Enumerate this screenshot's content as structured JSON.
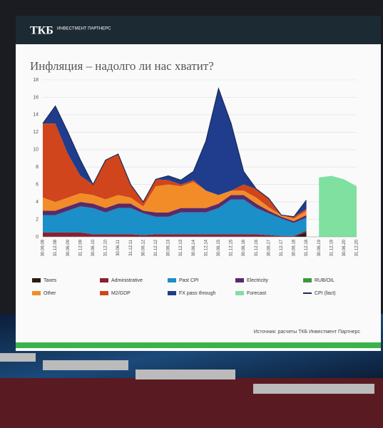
{
  "header": {
    "logo": "ТКБ",
    "logo_sub": "ИНВЕСТМЕНТ ПАРТНЕРС"
  },
  "source": "Источник: расчеты ТКБ Инвестмент Партнерс",
  "chart_data": {
    "type": "area",
    "title": "Инфляция – надолго ли нас хватит?",
    "categories": [
      "30.06.08",
      "31.12.08",
      "30.06.09",
      "31.12.09",
      "30.06.10",
      "31.12.10",
      "30.06.11",
      "31.12.11",
      "30.06.12",
      "31.12.12",
      "30.06.13",
      "31.12.13",
      "30.06.14",
      "31.12.14",
      "30.06.15",
      "31.12.15",
      "30.06.16",
      "31.12.16",
      "30.06.17",
      "31.12.17",
      "30.06.18",
      "31.12.18",
      "30.06.19",
      "31.12.19",
      "30.06.20",
      "31.12.20"
    ],
    "ylim": [
      0,
      18
    ],
    "yticks": [
      0,
      2,
      4,
      6,
      8,
      10,
      12,
      14,
      16,
      18
    ],
    "grid": true,
    "series": [
      {
        "name": "Taxes",
        "color": "#2a1c12",
        "values": [
          0,
          0,
          0,
          0,
          0,
          0,
          0,
          0,
          0,
          0,
          0,
          0,
          0,
          0,
          0,
          0,
          0,
          0,
          0,
          0,
          0,
          0.5,
          null,
          null,
          null,
          null
        ]
      },
      {
        "name": "Administrative",
        "color": "#8b2030",
        "values": [
          0.5,
          0.5,
          0.5,
          0.5,
          0.3,
          0.3,
          0.3,
          0.3,
          0.2,
          0.3,
          0.3,
          0.3,
          0.3,
          0.3,
          0.3,
          0.3,
          0.3,
          0.3,
          0.2,
          0.1,
          0.1,
          0.2,
          null,
          null,
          null,
          null
        ]
      },
      {
        "name": "Past CPI",
        "color": "#1a8fc8",
        "values": [
          2,
          2,
          2.5,
          3,
          3,
          2.5,
          3,
          3,
          2.5,
          2,
          2,
          2.5,
          2.5,
          2.5,
          3,
          4,
          4,
          3,
          2.5,
          2,
          1.5,
          1.5,
          null,
          null,
          null,
          null
        ]
      },
      {
        "name": "Electricity",
        "color": "#5a2a6a",
        "values": [
          0.5,
          0.5,
          0.5,
          0.5,
          0.5,
          0.5,
          0.5,
          0.5,
          0.3,
          0.5,
          0.5,
          0.5,
          0.5,
          0.5,
          0.5,
          0.5,
          0.5,
          0.5,
          0.3,
          0.2,
          0.2,
          0.3,
          null,
          null,
          null,
          null
        ]
      },
      {
        "name": "RUB/OIL",
        "color": "#3a9a3a",
        "values": [
          null,
          null,
          null,
          null,
          null,
          null,
          null,
          null,
          null,
          null,
          null,
          null,
          null,
          null,
          null,
          null,
          null,
          null,
          null,
          null,
          null,
          null,
          null,
          null,
          null,
          null
        ]
      },
      {
        "name": "Other",
        "color": "#f28c28",
        "values": [
          1.5,
          1,
          1,
          1,
          1,
          1,
          1,
          0.7,
          0.5,
          3,
          3.2,
          2.5,
          3,
          2,
          1,
          0.5,
          0.5,
          0.7,
          0.4,
          0.2,
          0.3,
          0.5,
          null,
          null,
          null,
          null
        ]
      },
      {
        "name": "M2/GDP",
        "color": "#d0451b",
        "values": [
          8.5,
          9,
          5,
          2,
          1.2,
          4.5,
          4.7,
          1.5,
          0.5,
          0.8,
          0.5,
          0.2,
          0.2,
          0,
          0,
          0,
          0.7,
          1,
          1,
          0,
          0.2,
          0.2,
          null,
          null,
          null,
          null
        ]
      },
      {
        "name": "FX pass through",
        "color": "#1f3d8c",
        "values": [
          0,
          2,
          2.5,
          1.8,
          0,
          0,
          0,
          0,
          0,
          0,
          0.5,
          0.5,
          1,
          5.7,
          12.2,
          7.7,
          1.5,
          0,
          0,
          0,
          0,
          1,
          null,
          null,
          null,
          null
        ]
      },
      {
        "name": "Forecast",
        "color": "#7fe0a0",
        "values": [
          null,
          null,
          null,
          null,
          null,
          null,
          null,
          null,
          null,
          null,
          null,
          null,
          null,
          null,
          null,
          null,
          null,
          null,
          null,
          null,
          null,
          null,
          6.8,
          7,
          6.6,
          5.8
        ]
      },
      {
        "name": "CPI (fact)",
        "color": "#1a2a5a",
        "style": "line",
        "values": [
          13,
          15,
          12,
          8.8,
          6,
          8.8,
          9.5,
          6,
          4,
          6.6,
          7,
          6.5,
          7.5,
          11,
          17,
          13,
          7.5,
          5.5,
          4.4,
          2.5,
          2.3,
          4.2,
          null,
          null,
          null,
          null
        ]
      }
    ]
  }
}
